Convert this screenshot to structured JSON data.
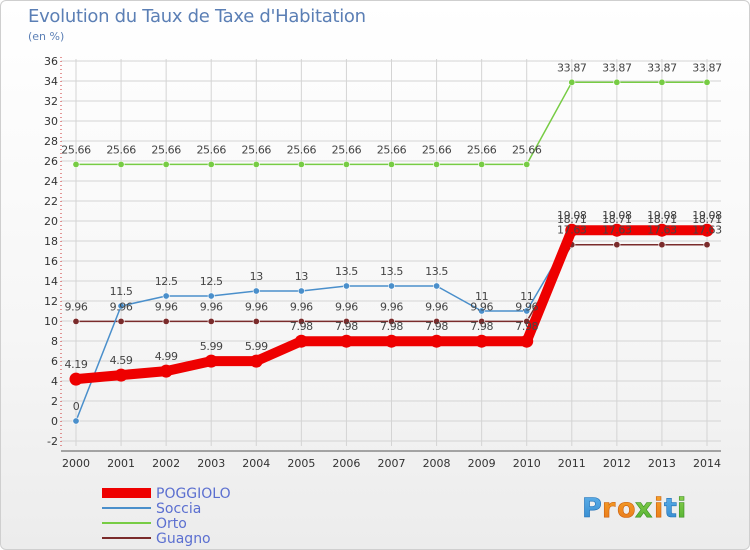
{
  "page": {
    "title": "Evolution du Taux de Taxe d'Habitation",
    "unit": "(en %)",
    "logo": "Proxiti"
  },
  "chart_data": {
    "type": "line",
    "title": "Evolution du Taux de Taxe d'Habitation",
    "ylabel": "(en %)",
    "xlabel": "",
    "x": [
      "2000",
      "2001",
      "2002",
      "2003",
      "2004",
      "2005",
      "2006",
      "2007",
      "2008",
      "2009",
      "2010",
      "2011",
      "2012",
      "2013",
      "2014"
    ],
    "ylim": [
      -2,
      36
    ],
    "yticks": [
      "-2",
      "0",
      "2",
      "4",
      "6",
      "8",
      "10",
      "12",
      "14",
      "16",
      "18",
      "20",
      "22",
      "24",
      "26",
      "28",
      "30",
      "32",
      "34",
      "36"
    ],
    "grid": true,
    "legend": "bottom-left",
    "series": [
      {
        "name": "POGGIOLO",
        "color": "#ee0000",
        "width": 10,
        "values": [
          4.19,
          4.59,
          4.99,
          5.99,
          5.99,
          7.98,
          7.98,
          7.98,
          7.98,
          7.98,
          7.98,
          19.08,
          19.08,
          19.08,
          19.08
        ],
        "labels": [
          "4.19",
          "4.59",
          "4.99",
          "5.99",
          "5.99",
          "7.98",
          "7.98",
          "7.98",
          "7.98",
          "7.98",
          "7.98",
          "19.08",
          "19.08",
          "19.08",
          "19.08"
        ]
      },
      {
        "name": "Soccia",
        "color": "#4a8fcb",
        "width": 1.5,
        "values": [
          0,
          11.5,
          12.5,
          12.5,
          13,
          13,
          13.5,
          13.5,
          13.5,
          11,
          11,
          18.71,
          18.71,
          18.71,
          18.71
        ],
        "labels": [
          "0",
          "11.5",
          "12.5",
          "12.5",
          "13",
          "13",
          "13.5",
          "13.5",
          "13.5",
          "11",
          "11",
          "18.71",
          "18.71",
          "18.71",
          "18.71"
        ]
      },
      {
        "name": "Orto",
        "color": "#77cc44",
        "width": 1.5,
        "values": [
          25.66,
          25.66,
          25.66,
          25.66,
          25.66,
          25.66,
          25.66,
          25.66,
          25.66,
          25.66,
          25.66,
          33.87,
          33.87,
          33.87,
          33.87
        ],
        "labels": [
          "25.66",
          "25.66",
          "25.66",
          "25.66",
          "25.66",
          "25.66",
          "25.66",
          "25.66",
          "25.66",
          "25.66",
          "25.66",
          "33.87",
          "33.87",
          "33.87",
          "33.87"
        ]
      },
      {
        "name": "Guagno",
        "color": "#7a2b2b",
        "width": 1.5,
        "values": [
          9.96,
          9.96,
          9.96,
          9.96,
          9.96,
          9.96,
          9.96,
          9.96,
          9.96,
          9.96,
          9.96,
          17.63,
          17.63,
          17.63,
          17.63
        ],
        "labels": [
          "9.96",
          "9.96",
          "9.96",
          "9.96",
          "9.96",
          "9.96",
          "9.96",
          "9.96",
          "9.96",
          "9.96",
          "9.96",
          "17.63",
          "17.63",
          "17.63",
          "17.63"
        ]
      }
    ]
  }
}
